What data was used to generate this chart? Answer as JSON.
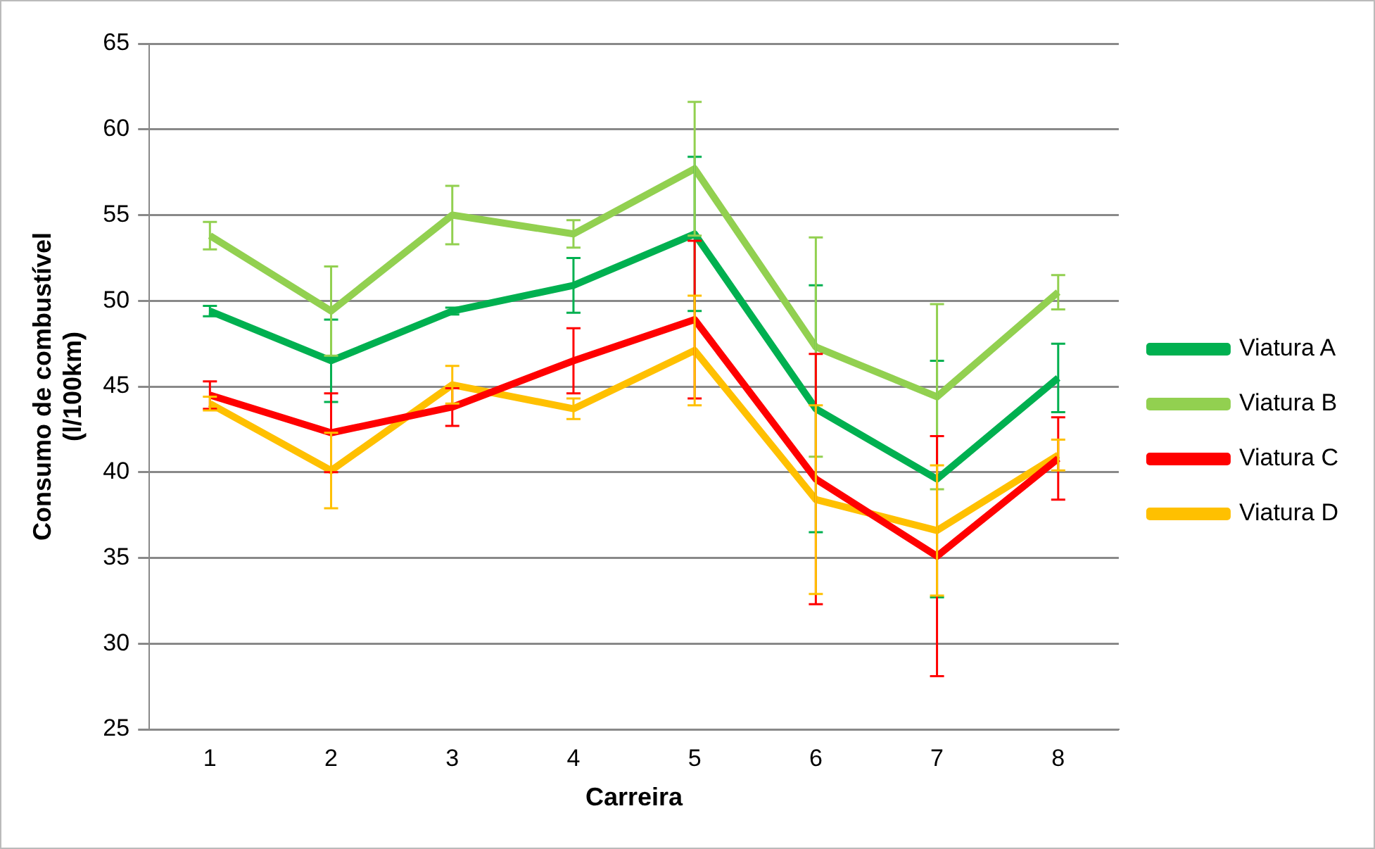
{
  "chart_data": {
    "type": "line",
    "xlabel": "Carreira",
    "ylabel": "Consumo de combustível\n(l/100km)",
    "categories": [
      "1",
      "2",
      "3",
      "4",
      "5",
      "6",
      "7",
      "8"
    ],
    "ylim": [
      25,
      65
    ],
    "yticks": [
      25,
      30,
      35,
      40,
      45,
      50,
      55,
      60,
      65
    ],
    "grid": "y",
    "legend": "right",
    "marker": "none",
    "line_style": "solid",
    "series": [
      {
        "name": "Viatura A",
        "color": "#00b050",
        "values": [
          49.4,
          46.5,
          49.4,
          50.9,
          53.9,
          43.7,
          39.6,
          45.5
        ],
        "errors": [
          0.3,
          2.4,
          0.2,
          1.6,
          4.5,
          7.2,
          6.9,
          2.0
        ]
      },
      {
        "name": "Viatura B",
        "color": "#92d050",
        "values": [
          53.8,
          49.4,
          55.0,
          53.9,
          57.7,
          47.3,
          44.4,
          50.5
        ],
        "errors": [
          0.8,
          2.6,
          1.7,
          0.8,
          3.9,
          6.4,
          5.4,
          1.0
        ]
      },
      {
        "name": "Viatura C",
        "color": "#ff0000",
        "values": [
          44.5,
          42.3,
          43.8,
          46.5,
          48.9,
          39.6,
          35.1,
          40.8
        ],
        "errors": [
          0.8,
          2.3,
          1.1,
          1.9,
          4.6,
          7.3,
          7.0,
          2.4
        ]
      },
      {
        "name": "Viatura D",
        "color": "#ffc000",
        "values": [
          44.0,
          40.1,
          45.1,
          43.7,
          47.1,
          38.4,
          36.6,
          41.0
        ],
        "errors": [
          0.4,
          2.2,
          1.1,
          0.6,
          3.2,
          5.5,
          3.8,
          0.9
        ]
      }
    ]
  }
}
